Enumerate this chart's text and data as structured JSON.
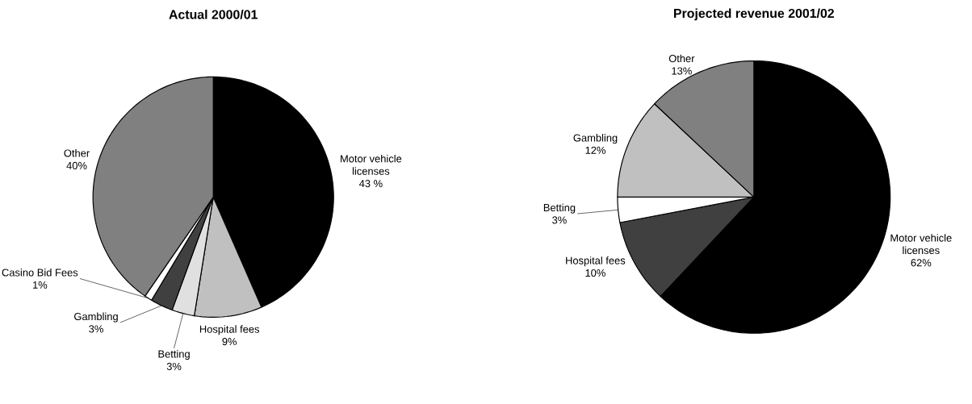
{
  "chart_data": [
    {
      "type": "pie",
      "title": "Actual 2000/01",
      "categories": [
        "Motor vehicle licenses",
        "Hospital fees",
        "Betting",
        "Gambling",
        "Casino Bid Fees",
        "Other"
      ],
      "values": [
        43,
        9,
        3,
        3,
        1,
        40
      ],
      "value_labels": [
        "43 %",
        "9%",
        "3%",
        "3%",
        "1%",
        "40%"
      ],
      "colors": [
        "#000000",
        "#c0c0c0",
        "#e0e0e0",
        "#404040",
        "#ffffff",
        "#808080"
      ]
    },
    {
      "type": "pie",
      "title": "Projected revenue 2001/02",
      "categories": [
        "Motor vehicle licenses",
        "Hospital fees",
        "Betting",
        "Gambling",
        "Other"
      ],
      "values": [
        62,
        10,
        3,
        12,
        13
      ],
      "value_labels": [
        "62%",
        "10%",
        "3%",
        "12%",
        "13%"
      ],
      "colors": [
        "#000000",
        "#404040",
        "#ffffff",
        "#c0c0c0",
        "#808080"
      ]
    }
  ]
}
